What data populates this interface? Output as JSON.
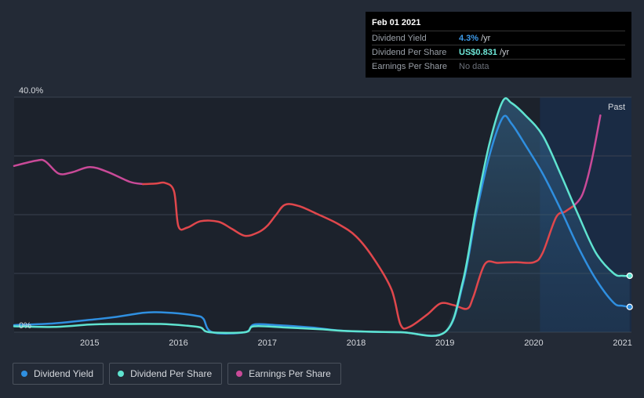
{
  "tooltip": {
    "date": "Feb 01 2021",
    "rows": [
      {
        "label": "Dividend Yield",
        "value": "4.3%",
        "unit": "/yr",
        "color": "#3d9ae8"
      },
      {
        "label": "Dividend Per Share",
        "value": "US$0.831",
        "unit": "/yr",
        "color": "#6ee7d8"
      },
      {
        "label": "Earnings Per Share",
        "value": "No data",
        "unit": "",
        "color": "#6b7079"
      }
    ]
  },
  "past_label": "Past",
  "legend": [
    {
      "label": "Dividend Yield",
      "color": "#2f8fe0"
    },
    {
      "label": "Dividend Per Share",
      "color": "#5fe3d0"
    },
    {
      "label": "Earnings Per Share",
      "color": "#c94a98"
    }
  ],
  "colors": {
    "background": "#232a36",
    "plot_background": "#1c222c",
    "future_band": "#1a2b44",
    "dividend_yield": "#2f8fe0",
    "dividend_per_share": "#5fe3d0",
    "earnings_per_share_negative": "#e0474c",
    "earnings_per_share_positive": "#c94a98"
  },
  "chart_data": {
    "type": "line",
    "title": "",
    "xlabel": "",
    "ylabel": "",
    "ylim": [
      0,
      40
    ],
    "y_ticks": [
      {
        "value": 0,
        "label": "0%"
      },
      {
        "value": 40,
        "label": "40.0%"
      }
    ],
    "x_ticks": [
      "2015",
      "2016",
      "2017",
      "2018",
      "2019",
      "2020",
      "2021"
    ],
    "xlim": [
      2014.15,
      2021.1
    ],
    "past_region_start": 2020.07,
    "series": [
      {
        "name": "Dividend Yield",
        "points": [
          [
            2014.15,
            1.2
          ],
          [
            2014.6,
            1.5
          ],
          [
            2015.0,
            2.1
          ],
          [
            2015.3,
            2.6
          ],
          [
            2015.6,
            3.3
          ],
          [
            2015.75,
            3.4
          ],
          [
            2016.0,
            3.2
          ],
          [
            2016.2,
            2.8
          ],
          [
            2016.28,
            2.3
          ],
          [
            2016.38,
            0
          ],
          [
            2016.75,
            0
          ],
          [
            2016.85,
            1.3
          ],
          [
            2017.1,
            1.2
          ],
          [
            2017.5,
            0.8
          ],
          [
            2017.9,
            0.2
          ],
          [
            2018.5,
            0
          ],
          [
            2019.0,
            0
          ],
          [
            2019.2,
            8
          ],
          [
            2019.35,
            20
          ],
          [
            2019.5,
            30
          ],
          [
            2019.65,
            36.5
          ],
          [
            2019.75,
            35.5
          ],
          [
            2019.9,
            32
          ],
          [
            2020.1,
            27
          ],
          [
            2020.3,
            21
          ],
          [
            2020.5,
            14.5
          ],
          [
            2020.7,
            9
          ],
          [
            2020.9,
            5
          ],
          [
            2021.0,
            4.5
          ],
          [
            2021.08,
            4.3
          ]
        ]
      },
      {
        "name": "Dividend Per Share",
        "points": [
          [
            2014.15,
            1.0
          ],
          [
            2014.6,
            0.9
          ],
          [
            2015.0,
            1.3
          ],
          [
            2015.3,
            1.4
          ],
          [
            2015.8,
            1.4
          ],
          [
            2016.1,
            1.1
          ],
          [
            2016.25,
            0.8
          ],
          [
            2016.35,
            0
          ],
          [
            2016.75,
            0
          ],
          [
            2016.85,
            1.0
          ],
          [
            2017.2,
            0.8
          ],
          [
            2017.6,
            0.5
          ],
          [
            2017.9,
            0.2
          ],
          [
            2018.5,
            0
          ],
          [
            2019.0,
            0
          ],
          [
            2019.2,
            8.5
          ],
          [
            2019.35,
            21
          ],
          [
            2019.5,
            32
          ],
          [
            2019.65,
            39.3
          ],
          [
            2019.75,
            39
          ],
          [
            2019.9,
            37
          ],
          [
            2020.1,
            33.5
          ],
          [
            2020.3,
            27
          ],
          [
            2020.5,
            20
          ],
          [
            2020.7,
            13.5
          ],
          [
            2020.9,
            10
          ],
          [
            2021.0,
            9.6
          ],
          [
            2021.08,
            9.6
          ]
        ]
      },
      {
        "name": "Earnings Per Share",
        "segments": [
          {
            "color": "#c94a98",
            "points": [
              [
                2014.15,
                28.3
              ],
              [
                2014.4,
                29.2
              ],
              [
                2014.5,
                29.1
              ],
              [
                2014.65,
                27
              ],
              [
                2014.8,
                27.2
              ],
              [
                2015.0,
                28.1
              ],
              [
                2015.2,
                27.3
              ],
              [
                2015.45,
                25.6
              ],
              [
                2015.6,
                25.2
              ]
            ]
          },
          {
            "color": "#e0474c",
            "points": [
              [
                2015.6,
                25.2
              ],
              [
                2015.75,
                25.3
              ],
              [
                2015.85,
                25.4
              ],
              [
                2015.95,
                24
              ],
              [
                2016.0,
                18
              ],
              [
                2016.1,
                17.8
              ],
              [
                2016.25,
                18.9
              ],
              [
                2016.45,
                18.8
              ],
              [
                2016.6,
                17.6
              ],
              [
                2016.75,
                16.4
              ],
              [
                2016.9,
                17
              ],
              [
                2017.0,
                18.1
              ],
              [
                2017.1,
                20
              ],
              [
                2017.2,
                21.7
              ],
              [
                2017.35,
                21.5
              ],
              [
                2017.55,
                20.2
              ],
              [
                2017.8,
                18.4
              ],
              [
                2018.0,
                16.3
              ],
              [
                2018.2,
                12.5
              ],
              [
                2018.4,
                7.2
              ],
              [
                2018.5,
                1.3
              ],
              [
                2018.6,
                0.9
              ],
              [
                2018.8,
                3
              ],
              [
                2018.95,
                4.9
              ],
              [
                2019.1,
                4.6
              ],
              [
                2019.25,
                4
              ],
              [
                2019.32,
                6
              ],
              [
                2019.45,
                11.6
              ],
              [
                2019.6,
                11.8
              ],
              [
                2019.8,
                11.9
              ],
              [
                2020.0,
                11.9
              ],
              [
                2020.1,
                13.5
              ],
              [
                2020.25,
                19.5
              ],
              [
                2020.35,
                20.5
              ],
              [
                2020.45,
                21.5
              ]
            ]
          },
          {
            "color": "#c94a98",
            "points": [
              [
                2020.45,
                21.5
              ],
              [
                2020.55,
                23.5
              ],
              [
                2020.65,
                29
              ],
              [
                2020.75,
                36.9
              ]
            ]
          }
        ]
      }
    ],
    "end_markers": [
      {
        "series": "Dividend Per Share",
        "x": 2021.08,
        "y": 9.6
      },
      {
        "series": "Dividend Yield",
        "x": 2021.08,
        "y": 4.3
      }
    ]
  }
}
